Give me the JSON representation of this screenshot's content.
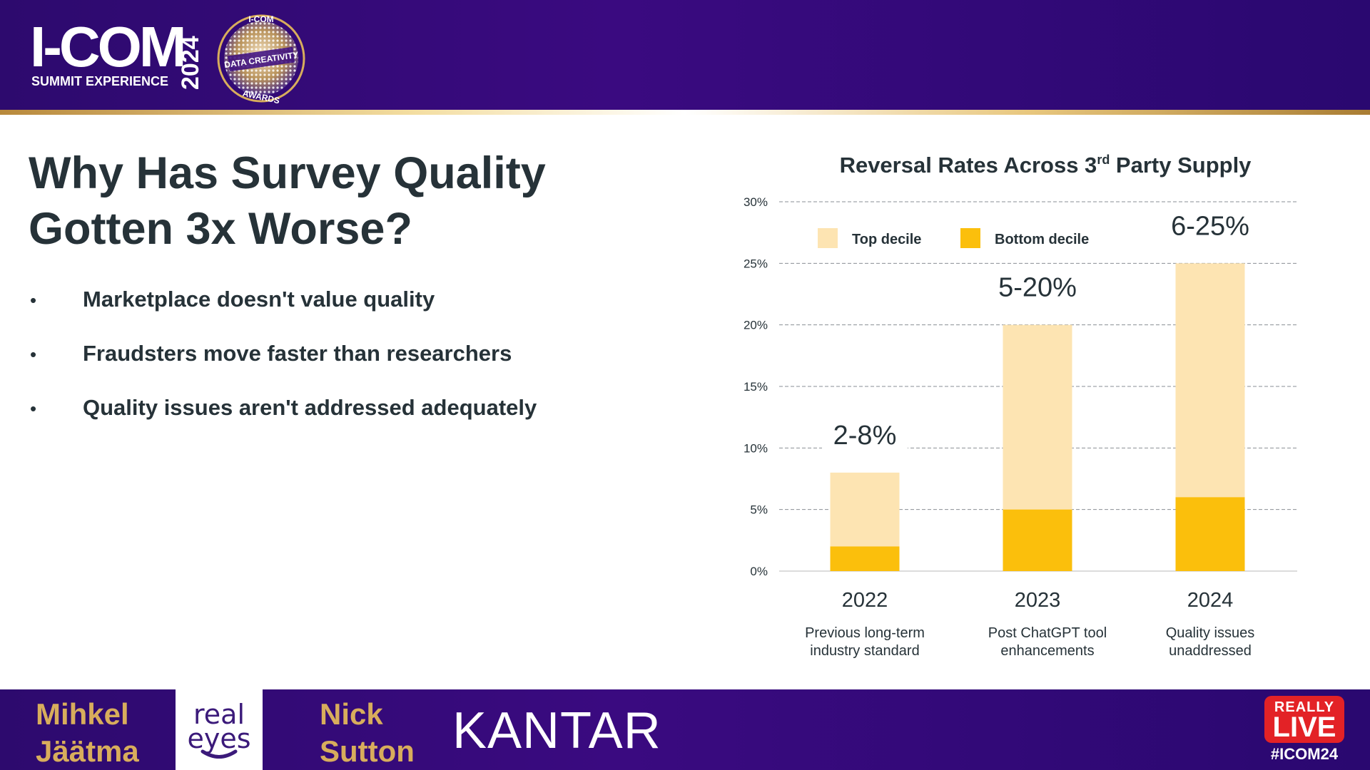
{
  "header": {
    "logo_text": "I-COM",
    "logo_subtitle": "SUMMIT EXPERIENCE",
    "year": "2024",
    "award": {
      "top": "I-COM",
      "middle": "DATA CREATIVITY",
      "bottom": "AWARDS"
    }
  },
  "slide": {
    "title": "Why Has Survey Quality Gotten 3x Worse?",
    "bullets": [
      "Marketplace doesn't value quality",
      "Fraudsters move faster than researchers",
      "Quality issues aren't addressed adequately"
    ],
    "bullet_symbol": "•"
  },
  "chart_title": {
    "prefix": "Reversal Rates Across 3",
    "sup": "rd",
    "suffix": " Party Supply"
  },
  "chart_data": {
    "type": "bar",
    "stacked": true,
    "title": "Reversal Rates Across 3rd Party Supply",
    "categories": [
      "2022",
      "2023",
      "2024"
    ],
    "category_descriptions": [
      "Previous long-term\nindustry standard",
      "Post ChatGPT tool\nenhancements",
      "Quality issues\nunaddressed"
    ],
    "series": [
      {
        "name": "Bottom decile",
        "values": [
          2,
          5,
          6
        ],
        "color": "#fbbf0c"
      },
      {
        "name": "Top decile",
        "values": [
          8,
          20,
          25
        ],
        "color": "#fde4b2"
      }
    ],
    "range_labels": [
      "2-8%",
      "5-20%",
      "6-25%"
    ],
    "ylim": [
      0,
      30
    ],
    "yticks": [
      0,
      5,
      10,
      15,
      20,
      25,
      30
    ],
    "ytick_labels": [
      "0%",
      "5%",
      "10%",
      "15%",
      "20%",
      "25%",
      "30%"
    ],
    "grid": true,
    "legend_position": "top",
    "legend_order": [
      "Top decile",
      "Bottom decile"
    ],
    "xlabel": "",
    "ylabel": ""
  },
  "footer": {
    "speaker1": "Mihkel\nJäätma",
    "company1": "real\neyes",
    "speaker2": "Nick\nSutton",
    "company2": "KANTAR",
    "live_badge_top": "REALLY",
    "live_badge_word": "LIVE",
    "hashtag": "#ICOM24"
  },
  "colors": {
    "brand_purple": "#3a0a80",
    "gold": "#d8ad5c",
    "live_red": "#e32226",
    "text_dark": "#263238"
  }
}
